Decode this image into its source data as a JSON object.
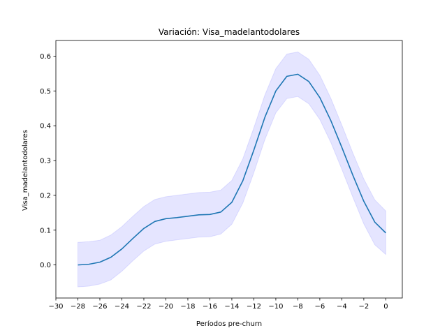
{
  "chart_data": {
    "type": "line",
    "title": "Variación: Visa_madelantodolares",
    "xlabel": "Períodos pre-churn",
    "ylabel": "Visa_madelantodolares",
    "xlim": [
      -30,
      1.5
    ],
    "ylim": [
      -0.095,
      0.645
    ],
    "xticks": [
      -30,
      -28,
      -26,
      -24,
      -22,
      -20,
      -18,
      -16,
      -14,
      -12,
      -10,
      -8,
      -6,
      -4,
      -2,
      0
    ],
    "yticks": [
      0.0,
      0.1,
      0.2,
      0.3,
      0.4,
      0.5,
      0.6
    ],
    "grid": false,
    "line_color": "#1f77b4",
    "band_color": "#0000ff",
    "series": [
      {
        "x": [
          -28,
          -27,
          -26,
          -25,
          -24,
          -23,
          -22,
          -21,
          -20,
          -19,
          -18,
          -17,
          -16,
          -15,
          -14,
          -13,
          -12,
          -11,
          -10,
          -9,
          -8,
          -7,
          -6,
          -5,
          -4,
          -3,
          -2,
          -1,
          0
        ],
        "y": [
          0.0,
          0.002,
          0.008,
          0.022,
          0.046,
          0.076,
          0.105,
          0.125,
          0.133,
          0.136,
          0.14,
          0.144,
          0.145,
          0.152,
          0.18,
          0.242,
          0.33,
          0.424,
          0.5,
          0.542,
          0.548,
          0.527,
          0.481,
          0.415,
          0.338,
          0.258,
          0.183,
          0.123,
          0.092
        ],
        "lower": [
          -0.063,
          -0.061,
          -0.055,
          -0.043,
          -0.018,
          0.012,
          0.04,
          0.06,
          0.068,
          0.072,
          0.076,
          0.08,
          0.081,
          0.089,
          0.117,
          0.178,
          0.265,
          0.36,
          0.437,
          0.478,
          0.484,
          0.463,
          0.418,
          0.352,
          0.275,
          0.195,
          0.118,
          0.058,
          0.03
        ],
        "upper": [
          0.065,
          0.067,
          0.071,
          0.086,
          0.11,
          0.14,
          0.168,
          0.188,
          0.196,
          0.2,
          0.204,
          0.208,
          0.209,
          0.215,
          0.243,
          0.305,
          0.394,
          0.488,
          0.564,
          0.606,
          0.612,
          0.591,
          0.545,
          0.479,
          0.402,
          0.322,
          0.247,
          0.187,
          0.155
        ]
      }
    ]
  }
}
